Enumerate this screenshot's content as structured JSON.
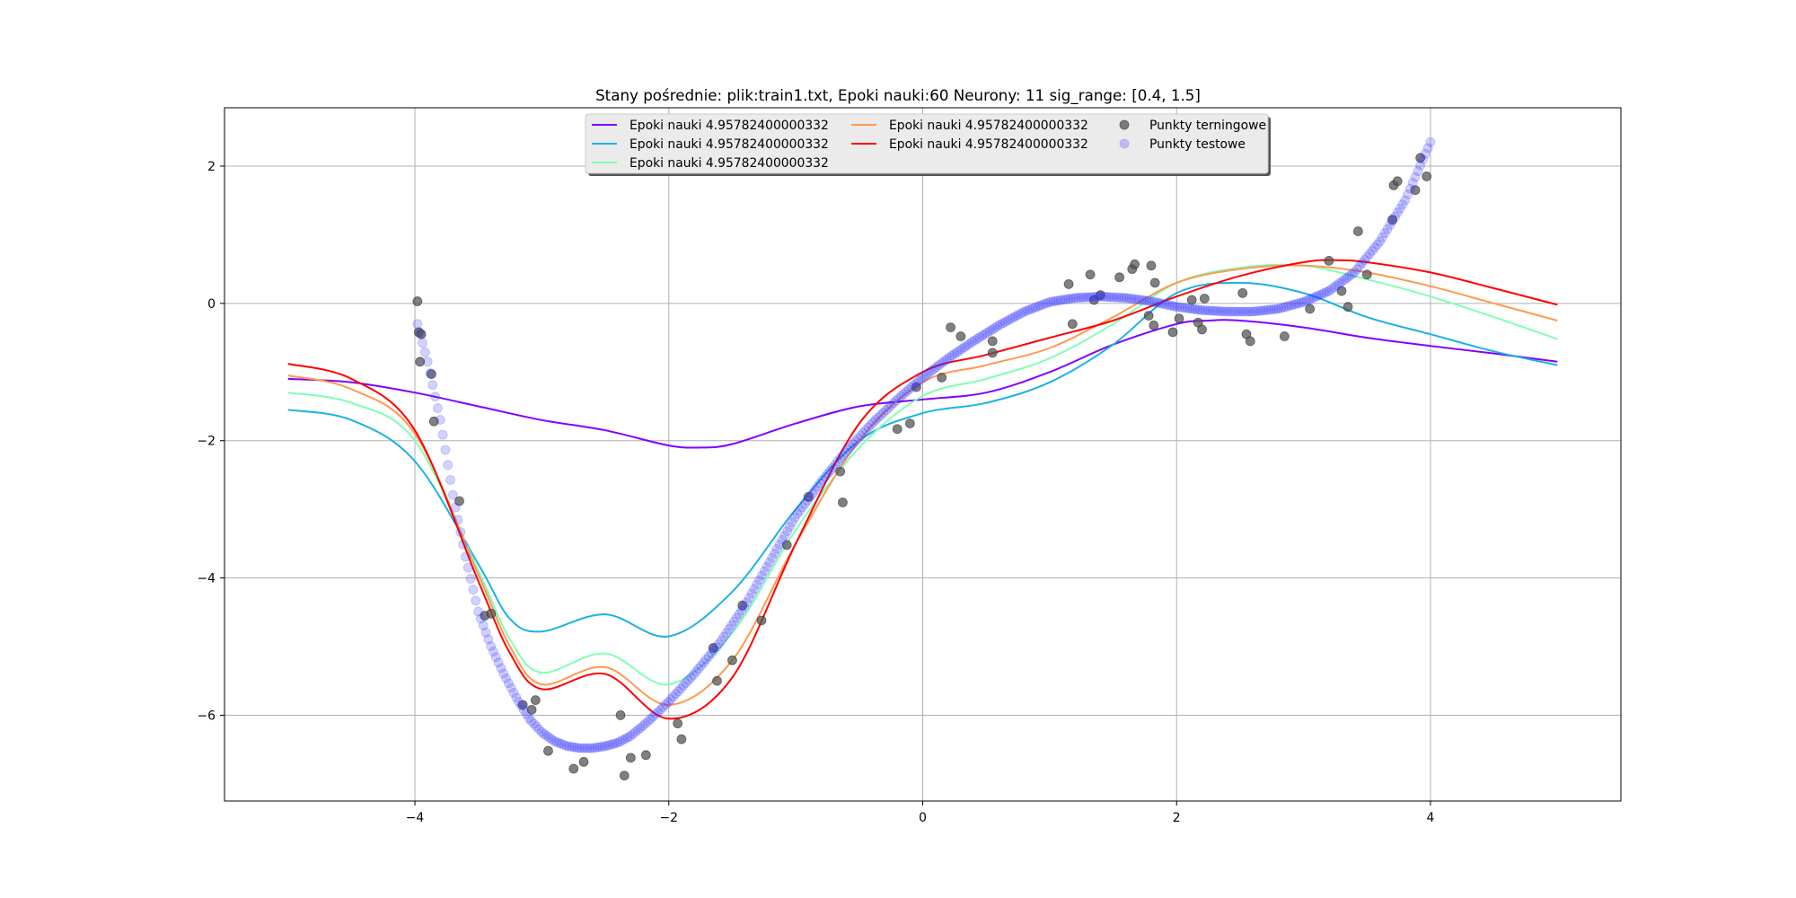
{
  "chart_data": {
    "type": "line",
    "title": "Stany pośrednie: plik:train1.txt, Epoki nauki:60 Neurony: 11  sig_range: [0.4, 1.5]",
    "xlabel": "",
    "ylabel": "",
    "xlim": [
      -5.5,
      5.5
    ],
    "ylim": [
      -7.25,
      2.85
    ],
    "xticks": [
      -4,
      -2,
      0,
      2,
      4
    ],
    "yticks": [
      -6,
      -4,
      -2,
      0,
      2
    ],
    "grid": true,
    "legend": {
      "position": "top-center",
      "columns": 3
    },
    "series": [
      {
        "name": "Epoki nauki 4.95782400000332",
        "color": "#8000ff",
        "x": [
          -5,
          -4.5,
          -4,
          -3.5,
          -3,
          -2.5,
          -2,
          -1.75,
          -1.5,
          -1,
          -0.5,
          0,
          0.5,
          1,
          1.5,
          2,
          2.25,
          2.5,
          3,
          3.5,
          4,
          4.5,
          5
        ],
        "y": [
          -1.1,
          -1.15,
          -1.3,
          -1.5,
          -1.7,
          -1.85,
          -2.07,
          -2.1,
          -2.05,
          -1.75,
          -1.5,
          -1.4,
          -1.3,
          -1.0,
          -0.6,
          -0.3,
          -0.25,
          -0.25,
          -0.35,
          -0.5,
          -0.62,
          -0.73,
          -0.85
        ]
      },
      {
        "name": "Epoki nauki 4.95782400000332",
        "color": "#1ab2e6",
        "x": [
          -5,
          -4.5,
          -4,
          -3.5,
          -3.25,
          -3,
          -2.5,
          -2,
          -1.5,
          -1,
          -0.5,
          0,
          0.5,
          1,
          1.5,
          2,
          2.5,
          3,
          3.5,
          4,
          4.5,
          5
        ],
        "y": [
          -1.55,
          -1.7,
          -2.3,
          -3.8,
          -4.6,
          -4.78,
          -4.53,
          -4.85,
          -4.2,
          -3.0,
          -2.0,
          -1.6,
          -1.45,
          -1.15,
          -0.6,
          0.15,
          0.3,
          0.15,
          -0.2,
          -0.45,
          -0.7,
          -0.9
        ]
      },
      {
        "name": "Epoki nauki 4.95782400000332",
        "color": "#80ffb4",
        "x": [
          -5,
          -4.5,
          -4,
          -3.5,
          -3.25,
          -3,
          -2.5,
          -2,
          -1.5,
          -1,
          -0.5,
          0,
          0.5,
          1,
          1.5,
          2,
          2.5,
          3,
          3.5,
          4,
          4.5,
          5
        ],
        "y": [
          -1.3,
          -1.45,
          -2.0,
          -3.9,
          -4.9,
          -5.38,
          -5.1,
          -5.55,
          -4.8,
          -3.3,
          -2.1,
          -1.35,
          -1.1,
          -0.8,
          -0.3,
          0.3,
          0.52,
          0.55,
          0.35,
          0.1,
          -0.2,
          -0.52
        ]
      },
      {
        "name": "Epoki nauki 4.95782400000332",
        "color": "#ff9a50",
        "x": [
          -5,
          -4.5,
          -4,
          -3.5,
          -3.25,
          -3,
          -2.5,
          -2,
          -1.5,
          -1,
          -0.5,
          0,
          0.5,
          1,
          1.5,
          2,
          2.5,
          3,
          3.5,
          4,
          4.5,
          5
        ],
        "y": [
          -1.05,
          -1.25,
          -1.9,
          -3.95,
          -5.0,
          -5.55,
          -5.3,
          -5.85,
          -5.2,
          -3.5,
          -2.0,
          -1.15,
          -0.9,
          -0.65,
          -0.2,
          0.3,
          0.5,
          0.55,
          0.45,
          0.25,
          0.0,
          -0.25
        ]
      },
      {
        "name": "Epoki nauki 4.95782400000332",
        "color": "#ff0000",
        "x": [
          -5,
          -4.5,
          -4,
          -3.5,
          -3.25,
          -3,
          -2.5,
          -2,
          -1.5,
          -1,
          -0.5,
          0,
          0.5,
          1,
          1.5,
          2,
          2.5,
          3,
          3.25,
          3.5,
          4,
          4.5,
          5
        ],
        "y": [
          -0.88,
          -1.1,
          -1.85,
          -4.05,
          -5.1,
          -5.62,
          -5.4,
          -6.05,
          -5.45,
          -3.5,
          -1.75,
          -1.0,
          -0.75,
          -0.5,
          -0.25,
          0.1,
          0.4,
          0.6,
          0.63,
          0.6,
          0.45,
          0.22,
          -0.02
        ]
      }
    ],
    "scatter": [
      {
        "name": "Punkty terningowe",
        "color": "#555555",
        "alpha": 0.75,
        "points": [
          [
            -3.98,
            0.03
          ],
          [
            -3.97,
            -0.42
          ],
          [
            -3.95,
            -0.45
          ],
          [
            -3.96,
            -0.85
          ],
          [
            -3.87,
            -1.03
          ],
          [
            -3.85,
            -1.72
          ],
          [
            -3.65,
            -2.88
          ],
          [
            -3.45,
            -4.55
          ],
          [
            -3.4,
            -4.52
          ],
          [
            -3.15,
            -5.85
          ],
          [
            -3.08,
            -5.92
          ],
          [
            -3.05,
            -5.78
          ],
          [
            -2.95,
            -6.52
          ],
          [
            -2.75,
            -6.78
          ],
          [
            -2.67,
            -6.68
          ],
          [
            -2.38,
            -6.0
          ],
          [
            -2.35,
            -6.88
          ],
          [
            -2.3,
            -6.62
          ],
          [
            -2.18,
            -6.58
          ],
          [
            -1.93,
            -6.12
          ],
          [
            -1.9,
            -6.35
          ],
          [
            -1.65,
            -5.02
          ],
          [
            -1.62,
            -5.5
          ],
          [
            -1.5,
            -5.2
          ],
          [
            -1.42,
            -4.4
          ],
          [
            -1.27,
            -4.62
          ],
          [
            -1.07,
            -3.52
          ],
          [
            -0.9,
            -2.82
          ],
          [
            -0.65,
            -2.45
          ],
          [
            -0.63,
            -2.9
          ],
          [
            -0.2,
            -1.83
          ],
          [
            -0.1,
            -1.75
          ],
          [
            -0.05,
            -1.22
          ],
          [
            0.15,
            -1.08
          ],
          [
            0.22,
            -0.35
          ],
          [
            0.3,
            -0.48
          ],
          [
            0.55,
            -0.72
          ],
          [
            0.55,
            -0.55
          ],
          [
            1.15,
            0.28
          ],
          [
            1.18,
            -0.3
          ],
          [
            1.32,
            0.42
          ],
          [
            1.35,
            0.05
          ],
          [
            1.4,
            0.12
          ],
          [
            1.55,
            0.38
          ],
          [
            1.65,
            0.5
          ],
          [
            1.67,
            0.57
          ],
          [
            1.78,
            -0.18
          ],
          [
            1.8,
            0.55
          ],
          [
            1.82,
            -0.32
          ],
          [
            1.83,
            0.3
          ],
          [
            1.97,
            -0.42
          ],
          [
            2.02,
            -0.22
          ],
          [
            2.12,
            0.05
          ],
          [
            2.17,
            -0.28
          ],
          [
            2.22,
            0.07
          ],
          [
            2.2,
            -0.38
          ],
          [
            2.52,
            0.15
          ],
          [
            2.55,
            -0.45
          ],
          [
            2.58,
            -0.55
          ],
          [
            2.85,
            -0.48
          ],
          [
            3.05,
            -0.08
          ],
          [
            3.2,
            0.62
          ],
          [
            3.3,
            0.18
          ],
          [
            3.35,
            -0.05
          ],
          [
            3.43,
            1.05
          ],
          [
            3.5,
            0.42
          ],
          [
            3.7,
            1.22
          ],
          [
            3.71,
            1.72
          ],
          [
            3.74,
            1.78
          ],
          [
            3.88,
            1.65
          ],
          [
            3.92,
            2.12
          ],
          [
            3.97,
            1.85
          ]
        ]
      },
      {
        "name": "Punkty testowe",
        "color": "#3030ff",
        "alpha": 0.22,
        "curve": {
          "x": [
            -3.98,
            -3.9,
            -3.8,
            -3.7,
            -3.6,
            -3.5,
            -3.4,
            -3.3,
            -3.2,
            -3.1,
            -3.0,
            -2.9,
            -2.8,
            -2.7,
            -2.6,
            -2.5,
            -2.4,
            -2.3,
            -2.2,
            -2.1,
            -2.0,
            -1.8,
            -1.6,
            -1.4,
            -1.2,
            -1.0,
            -0.8,
            -0.6,
            -0.4,
            -0.2,
            0.0,
            0.2,
            0.4,
            0.6,
            0.8,
            1.0,
            1.2,
            1.4,
            1.6,
            1.8,
            2.0,
            2.2,
            2.4,
            2.6,
            2.8,
            3.0,
            3.2,
            3.4,
            3.6,
            3.8,
            4.0
          ],
          "y": [
            -0.3,
            -0.85,
            -1.7,
            -2.8,
            -3.7,
            -4.5,
            -5.0,
            -5.4,
            -5.75,
            -6.05,
            -6.25,
            -6.38,
            -6.45,
            -6.48,
            -6.48,
            -6.45,
            -6.4,
            -6.3,
            -6.15,
            -5.98,
            -5.8,
            -5.4,
            -4.95,
            -4.4,
            -3.75,
            -3.1,
            -2.6,
            -2.15,
            -1.75,
            -1.4,
            -1.08,
            -0.8,
            -0.55,
            -0.32,
            -0.12,
            0.02,
            0.08,
            0.1,
            0.08,
            0.03,
            -0.05,
            -0.1,
            -0.12,
            -0.12,
            -0.08,
            0.02,
            0.18,
            0.45,
            0.9,
            1.5,
            2.35
          ]
        }
      }
    ],
    "legend_entries": [
      "Epoki nauki 4.95782400000332",
      "Epoki nauki 4.95782400000332",
      "Epoki nauki 4.95782400000332",
      "Epoki nauki 4.95782400000332",
      "Epoki nauki 4.95782400000332",
      "Punkty terningowe",
      "Punkty testowe"
    ]
  }
}
